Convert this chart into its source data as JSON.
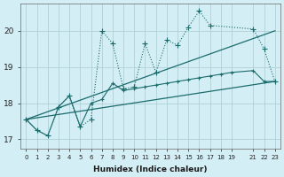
{
  "xlabel": "Humidex (Indice chaleur)",
  "bg_color": "#d4eef5",
  "line_color": "#1a6b6b",
  "grid_color": "#afd0d8",
  "xlim": [
    -0.5,
    23.5
  ],
  "ylim": [
    16.75,
    20.75
  ],
  "yticks": [
    17,
    18,
    19,
    20
  ],
  "xticks": [
    0,
    1,
    2,
    3,
    4,
    5,
    6,
    7,
    8,
    9,
    10,
    11,
    12,
    13,
    14,
    15,
    16,
    17,
    18,
    19,
    21,
    22,
    23
  ],
  "xtick_labels": [
    "0",
    "1",
    "2",
    "3",
    "4",
    "5",
    "6",
    "7",
    "8",
    "9",
    "10",
    "11",
    "12",
    "13",
    "14",
    "15",
    "16",
    "17",
    "18",
    "19",
    "21",
    "22",
    "23"
  ],
  "line1_x": [
    0,
    23
  ],
  "line1_y": [
    17.55,
    20.0
  ],
  "line2_x": [
    0,
    23
  ],
  "line2_y": [
    17.55,
    18.6
  ],
  "series_dot_x": [
    0,
    1,
    2,
    3,
    4,
    5,
    6,
    7,
    8,
    9,
    10,
    11,
    12,
    13,
    14,
    15,
    16,
    17,
    21,
    22,
    23
  ],
  "series_dot_y": [
    17.55,
    17.25,
    17.1,
    17.9,
    18.2,
    17.35,
    17.55,
    20.0,
    19.65,
    18.4,
    18.45,
    19.65,
    18.85,
    19.75,
    19.6,
    20.1,
    20.55,
    20.15,
    20.05,
    19.5,
    18.6
  ],
  "series_small_x": [
    0,
    1,
    2,
    3,
    4,
    5,
    6,
    7,
    8,
    9,
    10,
    11,
    12,
    13,
    14,
    15,
    16,
    17,
    18,
    19,
    21,
    22,
    23
  ],
  "series_small_y": [
    17.55,
    17.25,
    17.1,
    17.9,
    18.2,
    17.35,
    18.0,
    18.1,
    18.55,
    18.35,
    18.4,
    18.45,
    18.5,
    18.55,
    18.6,
    18.65,
    18.7,
    18.75,
    18.8,
    18.85,
    18.9,
    18.6,
    18.6
  ]
}
